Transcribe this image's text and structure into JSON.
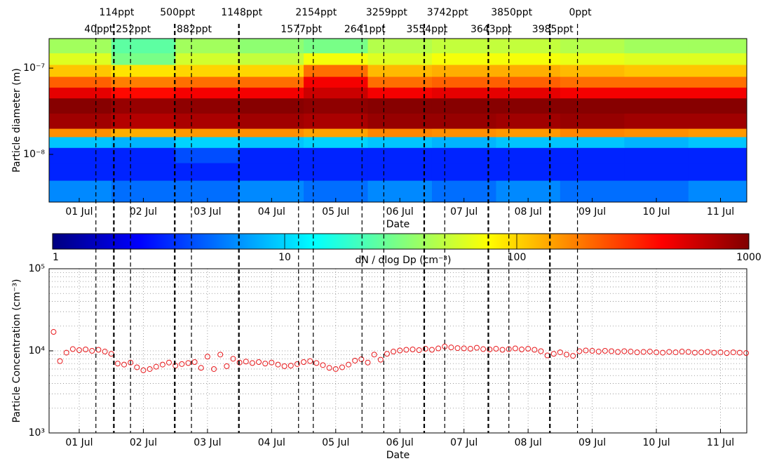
{
  "chart_data": [
    {
      "type": "heatmap",
      "xlabel": "Date",
      "ylabel": "Particle diameter (m)",
      "yscale": "log",
      "colormap": "jet",
      "xlim": [
        0.53,
        11.41
      ],
      "xticks": [
        {
          "value": 1,
          "label": "01 Jul"
        },
        {
          "value": 2,
          "label": "02 Jul"
        },
        {
          "value": 3,
          "label": "03 Jul"
        },
        {
          "value": 4,
          "label": "04 Jul"
        },
        {
          "value": 5,
          "label": "05 Jul"
        },
        {
          "value": 6,
          "label": "06 Jul"
        },
        {
          "value": 7,
          "label": "07 Jul"
        },
        {
          "value": 8,
          "label": "08 Jul"
        },
        {
          "value": 9,
          "label": "09 Jul"
        },
        {
          "value": 10,
          "label": "10 Jul"
        },
        {
          "value": 11,
          "label": "11 Jul"
        }
      ],
      "ylim": [
        2.8e-09,
        2.2e-07
      ],
      "yticks": [
        {
          "value": 1e-08,
          "label": "10⁻⁸"
        },
        {
          "value": 1e-07,
          "label": "10⁻⁷"
        }
      ],
      "xbins": [
        0.53,
        1.5,
        2.5,
        3.5,
        4.5,
        5.5,
        6.5,
        7.5,
        8.5,
        9.5,
        10.5,
        11.41
      ],
      "ybins": [
        2.8e-09,
        5e-09,
        8e-09,
        1.2e-08,
        1.6e-08,
        2e-08,
        3e-08,
        4.5e-08,
        6e-08,
        8e-08,
        1.1e-07,
        1.5e-07,
        2.2e-07
      ],
      "z": [
        [
          6,
          5,
          5,
          6,
          5,
          6,
          5,
          6,
          5,
          5,
          6
        ],
        [
          3,
          3,
          3,
          3,
          3,
          3,
          3,
          3,
          3,
          3,
          3
        ],
        [
          3,
          3,
          4,
          3,
          3,
          3,
          3,
          3,
          3,
          3,
          3
        ],
        [
          9,
          8,
          10,
          9,
          10,
          9,
          8,
          9,
          9,
          8,
          9
        ],
        [
          160,
          130,
          150,
          160,
          140,
          170,
          160,
          150,
          170,
          160,
          150
        ],
        [
          800,
          700,
          750,
          800,
          750,
          850,
          850,
          800,
          850,
          800,
          800
        ],
        [
          950,
          850,
          900,
          950,
          900,
          950,
          950,
          950,
          950,
          950,
          950
        ],
        [
          500,
          400,
          450,
          450,
          600,
          450,
          500,
          500,
          450,
          450,
          450
        ],
        [
          220,
          180,
          200,
          200,
          450,
          200,
          220,
          220,
          200,
          200,
          200
        ],
        [
          110,
          90,
          100,
          100,
          200,
          120,
          130,
          130,
          120,
          110,
          110
        ],
        [
          60,
          30,
          55,
          50,
          70,
          60,
          70,
          70,
          65,
          60,
          60
        ],
        [
          40,
          25,
          40,
          35,
          30,
          45,
          50,
          50,
          45,
          40,
          40
        ]
      ],
      "colorbar": {
        "label": "dN / dlog Dp (cm⁻³)",
        "scale": "log",
        "lim": [
          1,
          1000
        ],
        "ticks": [
          1,
          10,
          100,
          1000
        ]
      },
      "annotations": [
        {
          "x": 1.26,
          "label": "40ppt",
          "linewidth": 1.2
        },
        {
          "x": 1.54,
          "label": "114ppt",
          "linewidth": 2.2
        },
        {
          "x": 1.8,
          "label": "252ppt",
          "linewidth": 1.2
        },
        {
          "x": 2.49,
          "label": "500ppt",
          "linewidth": 2.2
        },
        {
          "x": 2.75,
          "label": "882ppt",
          "linewidth": 1.2
        },
        {
          "x": 3.49,
          "label": "1148ppt",
          "linewidth": 2.2
        },
        {
          "x": 4.42,
          "label": "1577ppt",
          "linewidth": 1.2
        },
        {
          "x": 4.65,
          "label": "2154ppt",
          "linewidth": 1.2
        },
        {
          "x": 5.41,
          "label": "2641ppt",
          "linewidth": 1.2
        },
        {
          "x": 5.75,
          "label": "3259ppt",
          "linewidth": 1.2
        },
        {
          "x": 6.38,
          "label": "3554ppt",
          "linewidth": 2.2
        },
        {
          "x": 6.7,
          "label": "3742ppt",
          "linewidth": 1.2
        },
        {
          "x": 7.38,
          "label": "3643ppt",
          "linewidth": 2.2
        },
        {
          "x": 7.7,
          "label": "3850ppt",
          "linewidth": 1.2
        },
        {
          "x": 8.34,
          "label": "3985ppt",
          "linewidth": 2.2
        },
        {
          "x": 8.77,
          "label": "0ppt",
          "linewidth": 1.2
        }
      ]
    },
    {
      "type": "scatter",
      "xlabel": "Date",
      "ylabel": "Particle Concentration (cm⁻³)",
      "yscale": "log",
      "grid": true,
      "color": "#e8191c",
      "xlim": [
        0.53,
        11.41
      ],
      "xticks": [
        {
          "value": 1,
          "label": "01 Jul"
        },
        {
          "value": 2,
          "label": "02 Jul"
        },
        {
          "value": 3,
          "label": "03 Jul"
        },
        {
          "value": 4,
          "label": "04 Jul"
        },
        {
          "value": 5,
          "label": "05 Jul"
        },
        {
          "value": 6,
          "label": "06 Jul"
        },
        {
          "value": 7,
          "label": "07 Jul"
        },
        {
          "value": 8,
          "label": "08 Jul"
        },
        {
          "value": 9,
          "label": "09 Jul"
        },
        {
          "value": 10,
          "label": "10 Jul"
        },
        {
          "value": 11,
          "label": "11 Jul"
        }
      ],
      "ylim": [
        1000,
        100000
      ],
      "yticks": [
        {
          "value": 1000,
          "label": "10³"
        },
        {
          "value": 10000,
          "label": "10⁴"
        },
        {
          "value": 100000,
          "label": "10⁵"
        }
      ],
      "yminorticks": [
        2000,
        3000,
        4000,
        5000,
        6000,
        7000,
        8000,
        9000,
        20000,
        30000,
        40000,
        50000,
        60000,
        70000,
        80000,
        90000
      ],
      "x": [
        0.6,
        0.7,
        0.8,
        0.9,
        1.0,
        1.1,
        1.2,
        1.3,
        1.4,
        1.5,
        1.6,
        1.7,
        1.8,
        1.9,
        2.0,
        2.1,
        2.2,
        2.3,
        2.4,
        2.5,
        2.6,
        2.7,
        2.8,
        2.9,
        3.0,
        3.1,
        3.2,
        3.3,
        3.4,
        3.5,
        3.6,
        3.7,
        3.8,
        3.9,
        4.0,
        4.1,
        4.2,
        4.3,
        4.4,
        4.5,
        4.6,
        4.7,
        4.8,
        4.9,
        5.0,
        5.1,
        5.2,
        5.3,
        5.4,
        5.5,
        5.6,
        5.7,
        5.8,
        5.9,
        6.0,
        6.1,
        6.2,
        6.3,
        6.4,
        6.5,
        6.6,
        6.7,
        6.8,
        6.9,
        7.0,
        7.1,
        7.2,
        7.3,
        7.4,
        7.5,
        7.6,
        7.7,
        7.8,
        7.9,
        8.0,
        8.1,
        8.2,
        8.3,
        8.4,
        8.5,
        8.6,
        8.7,
        8.8,
        8.9,
        9.0,
        9.1,
        9.2,
        9.3,
        9.4,
        9.5,
        9.6,
        9.7,
        9.8,
        9.9,
        10.0,
        10.1,
        10.2,
        10.3,
        10.4,
        10.5,
        10.6,
        10.7,
        10.8,
        10.9,
        11.0,
        11.1,
        11.2,
        11.3,
        11.4
      ],
      "values": [
        17000,
        7500,
        9500,
        10500,
        10200,
        10400,
        10000,
        10300,
        9800,
        9200,
        7000,
        6800,
        7200,
        6300,
        5800,
        6000,
        6400,
        6800,
        7200,
        6600,
        6900,
        7100,
        7300,
        6200,
        8500,
        6000,
        9000,
        6500,
        8000,
        7200,
        7400,
        7100,
        7300,
        7000,
        7200,
        6800,
        6500,
        6600,
        6900,
        7300,
        7500,
        7100,
        6700,
        6200,
        6000,
        6300,
        6800,
        7600,
        7900,
        7200,
        9000,
        7800,
        9200,
        9800,
        10100,
        10300,
        10400,
        10200,
        10600,
        10300,
        10700,
        11300,
        11000,
        10800,
        10700,
        10600,
        10900,
        10500,
        10400,
        10600,
        10300,
        10500,
        10700,
        10400,
        10600,
        10300,
        9900,
        8800,
        9200,
        9600,
        9000,
        8700,
        9900,
        10100,
        10000,
        9800,
        10000,
        9900,
        9700,
        9900,
        9800,
        9600,
        9700,
        9800,
        9600,
        9500,
        9700,
        9600,
        9800,
        9700,
        9500,
        9600,
        9700,
        9500,
        9600,
        9400,
        9600,
        9500,
        9400
      ]
    }
  ]
}
